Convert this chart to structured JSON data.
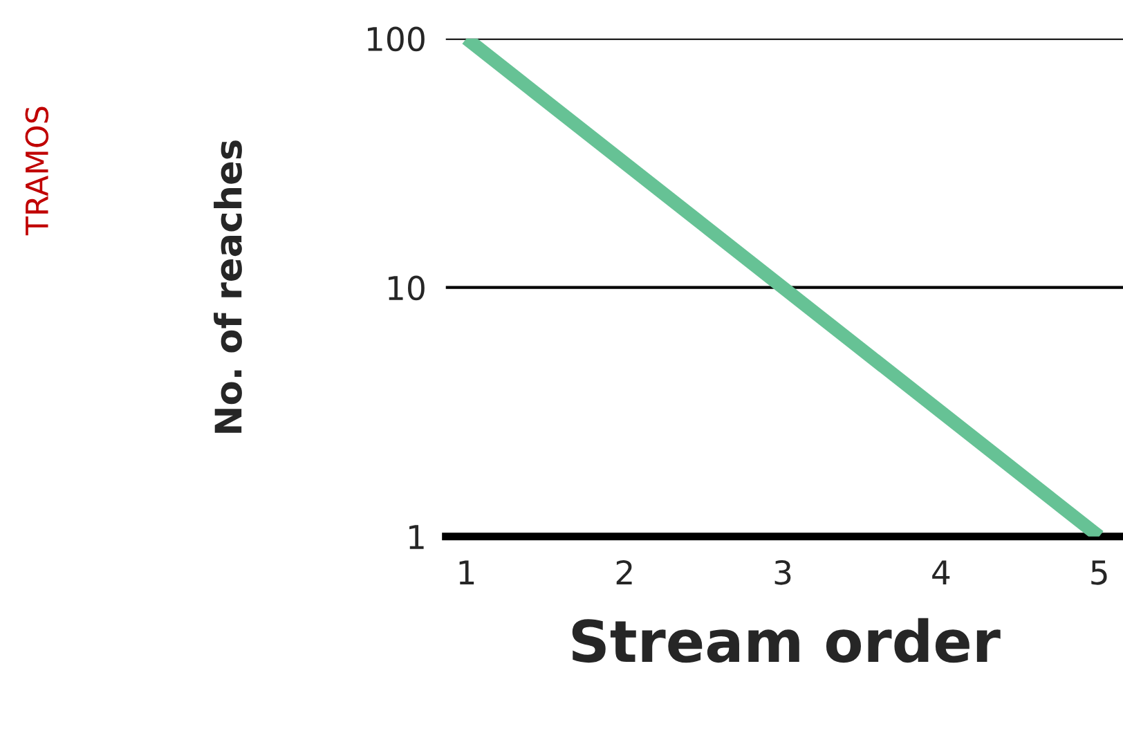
{
  "chart_data": {
    "type": "line",
    "xlabel": "Stream order",
    "ylabel": "No. of reaches",
    "annotations": [
      "TRAMOS"
    ],
    "x": [
      1,
      5
    ],
    "series": [
      {
        "color": "#66c295",
        "values": [
          100,
          1
        ]
      }
    ],
    "xlim": [
      0.87,
      5.15
    ],
    "ylim": [
      1,
      100
    ],
    "xticks": [
      1,
      2,
      3,
      4,
      5
    ],
    "yticks": [
      1,
      10,
      100
    ],
    "log": "y",
    "grid": "y",
    "marker": "none",
    "line_style": "solid",
    "legend": false
  }
}
